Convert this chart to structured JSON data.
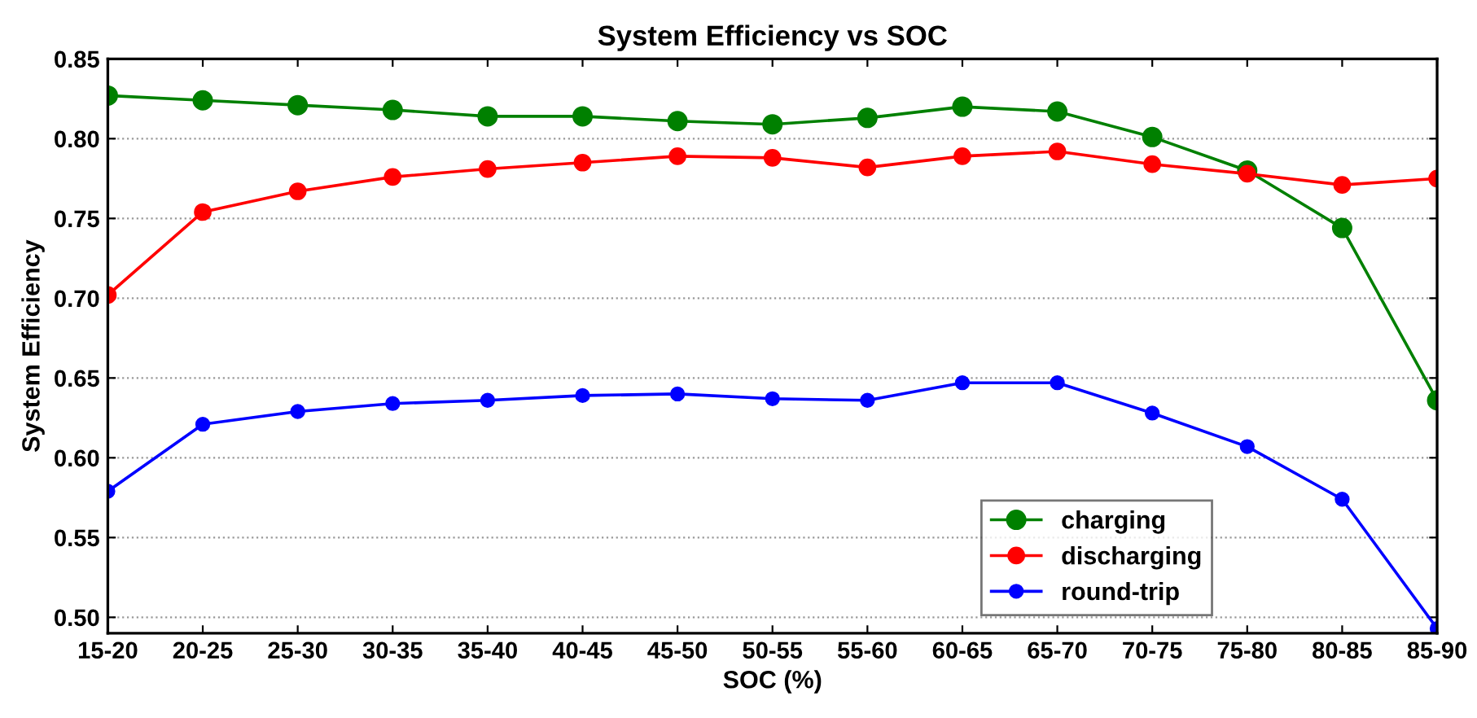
{
  "chart_data": {
    "type": "line",
    "title": "System Efficiency vs SOC",
    "xlabel": "SOC (%)",
    "ylabel": "System Efficiency",
    "categories": [
      "15-20",
      "20-25",
      "25-30",
      "30-35",
      "35-40",
      "40-45",
      "45-50",
      "50-55",
      "55-60",
      "60-65",
      "65-70",
      "70-75",
      "75-80",
      "80-85",
      "85-90"
    ],
    "series": [
      {
        "name": "charging",
        "color": "#008000",
        "values": [
          0.827,
          0.824,
          0.821,
          0.818,
          0.814,
          0.814,
          0.811,
          0.809,
          0.813,
          0.82,
          0.817,
          0.801,
          0.78,
          0.744,
          0.636
        ]
      },
      {
        "name": "discharging",
        "color": "#ff0000",
        "values": [
          0.702,
          0.754,
          0.767,
          0.776,
          0.781,
          0.785,
          0.789,
          0.788,
          0.782,
          0.789,
          0.792,
          0.784,
          0.778,
          0.771,
          0.775
        ]
      },
      {
        "name": "round-trip",
        "color": "#0000ff",
        "values": [
          0.579,
          0.621,
          0.629,
          0.634,
          0.636,
          0.639,
          0.64,
          0.637,
          0.636,
          0.647,
          0.647,
          0.628,
          0.607,
          0.574,
          0.493
        ]
      }
    ],
    "ylim": [
      0.49,
      0.85
    ],
    "yticks": [
      {
        "value": 0.5,
        "label": "0.50"
      },
      {
        "value": 0.55,
        "label": "0.55"
      },
      {
        "value": 0.6,
        "label": "0.60"
      },
      {
        "value": 0.65,
        "label": "0.65"
      },
      {
        "value": 0.7,
        "label": "0.70"
      },
      {
        "value": 0.75,
        "label": "0.75"
      },
      {
        "value": 0.8,
        "label": "0.80"
      },
      {
        "value": 0.85,
        "label": "0.85"
      }
    ],
    "grid": "y",
    "legend": "bottom right",
    "marker": "circle",
    "line_style": "solid"
  }
}
